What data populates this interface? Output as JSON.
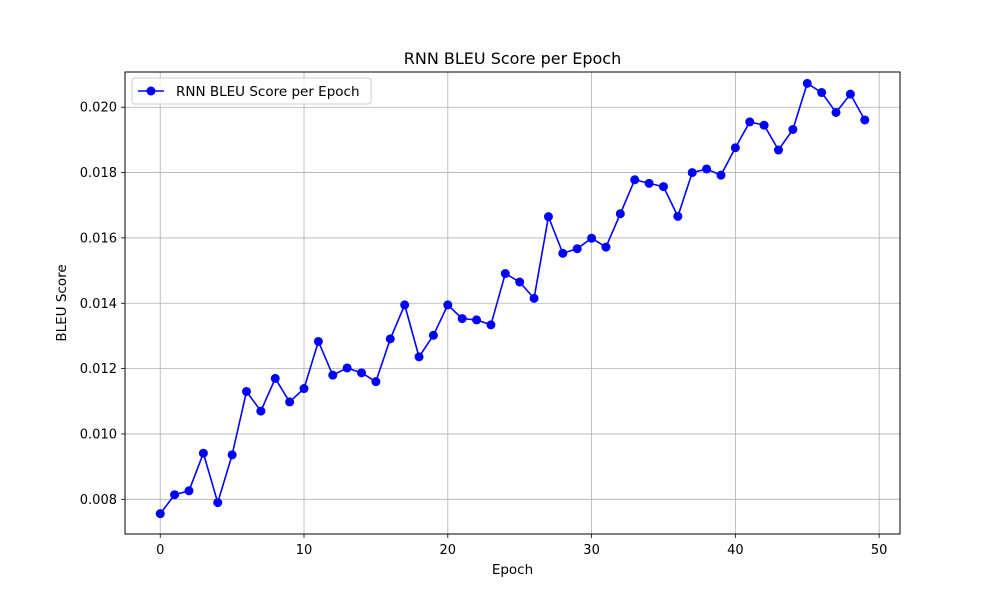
{
  "chart_data": {
    "type": "line",
    "title": "RNN BLEU Score per Epoch",
    "xlabel": "Epoch",
    "ylabel": "BLEU Score",
    "xlim": [
      -2.45,
      51.45
    ],
    "ylim": [
      0.006938,
      0.021078
    ],
    "xticks": [
      0,
      10,
      20,
      30,
      40,
      50
    ],
    "yticks": [
      0.008,
      0.01,
      0.012,
      0.014,
      0.016,
      0.018,
      0.02
    ],
    "ytick_labels": [
      "0.008",
      "0.010",
      "0.012",
      "0.014",
      "0.016",
      "0.018",
      "0.020"
    ],
    "grid": true,
    "legend": {
      "position": "top-left",
      "entries": [
        "RNN BLEU Score per Epoch"
      ]
    },
    "series": [
      {
        "name": "RNN BLEU Score per Epoch",
        "color": "#0000ff",
        "marker": "circle",
        "x": [
          0,
          1,
          2,
          3,
          4,
          5,
          6,
          7,
          8,
          9,
          10,
          11,
          12,
          13,
          14,
          15,
          16,
          17,
          18,
          19,
          20,
          21,
          22,
          23,
          24,
          25,
          26,
          27,
          28,
          29,
          30,
          31,
          32,
          33,
          34,
          35,
          36,
          37,
          38,
          39,
          40,
          41,
          42,
          43,
          44,
          45,
          46,
          47,
          48,
          49
        ],
        "y": [
          0.00756,
          0.00814,
          0.00826,
          0.00941,
          0.0079,
          0.00936,
          0.0113,
          0.0107,
          0.0117,
          0.01098,
          0.01139,
          0.01283,
          0.0118,
          0.01202,
          0.01187,
          0.0116,
          0.01291,
          0.01395,
          0.01236,
          0.01302,
          0.01395,
          0.01353,
          0.01349,
          0.01334,
          0.01491,
          0.01465,
          0.01415,
          0.01665,
          0.01553,
          0.01567,
          0.01599,
          0.01572,
          0.01674,
          0.01778,
          0.01767,
          0.01757,
          0.01666,
          0.018,
          0.01811,
          0.01792,
          0.01876,
          0.01955,
          0.01945,
          0.01869,
          0.01932,
          0.02073,
          0.02045,
          0.01984,
          0.0204,
          0.01961
        ]
      }
    ]
  }
}
